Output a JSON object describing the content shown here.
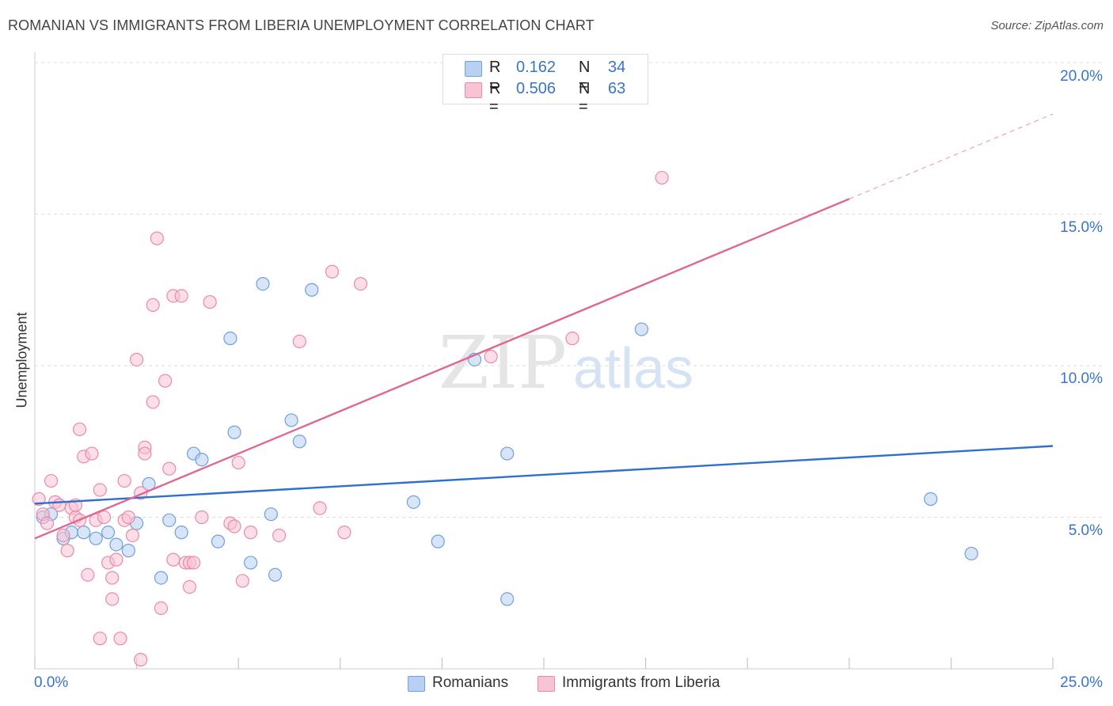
{
  "header": {
    "title": "ROMANIAN VS IMMIGRANTS FROM LIBERIA UNEMPLOYMENT CORRELATION CHART",
    "source": "Source: ZipAtlas.com"
  },
  "legend_box": {
    "rows": [
      {
        "r_label": "R =",
        "r_value": "0.162",
        "n_label": "N =",
        "n_value": "34"
      },
      {
        "r_label": "R =",
        "r_value": "0.506",
        "n_label": "N =",
        "n_value": "63"
      }
    ]
  },
  "bottom_legend": [
    "Romanians",
    "Immigrants from Liberia"
  ],
  "watermark": {
    "zip": "ZIP",
    "atlas": "atlas"
  },
  "colors": {
    "romanians_fill": "#b8d0f3",
    "romanians_stroke": "#6f9fe0",
    "romanians_line": "#2f6fd0",
    "liberia_fill": "#f8c3d2",
    "liberia_stroke": "#ea8aa8",
    "liberia_line": "#e06890",
    "tick_text": "#3a74c9",
    "grid": "#dddddd"
  },
  "chart_data": {
    "type": "scatter",
    "title": "ROMANIAN VS IMMIGRANTS FROM LIBERIA UNEMPLOYMENT CORRELATION CHART",
    "xlabel": "",
    "ylabel": "Unemployment",
    "xlim": [
      0,
      25
    ],
    "ylim": [
      0,
      20
    ],
    "x_tick_labels": [
      "0.0%",
      "25.0%"
    ],
    "y_ticks": [
      5,
      10,
      15,
      20
    ],
    "y_tick_labels": [
      "5.0%",
      "10.0%",
      "15.0%",
      "20.0%"
    ],
    "grid": "horizontal dashed",
    "legend": "top-center",
    "series": [
      {
        "name": "Romanians",
        "r": 0.162,
        "n": 34,
        "trend": {
          "x0": 0.0,
          "y0": 5.45,
          "x1": 25.0,
          "y1": 7.35,
          "solid_to": 25.0
        },
        "points": [
          [
            0.2,
            5.0
          ],
          [
            0.4,
            5.1
          ],
          [
            0.7,
            4.3
          ],
          [
            0.9,
            4.5
          ],
          [
            1.2,
            4.5
          ],
          [
            1.5,
            4.3
          ],
          [
            1.8,
            4.5
          ],
          [
            2.0,
            4.1
          ],
          [
            2.3,
            3.9
          ],
          [
            2.5,
            4.8
          ],
          [
            2.8,
            6.1
          ],
          [
            3.1,
            3.0
          ],
          [
            3.3,
            4.9
          ],
          [
            3.6,
            4.5
          ],
          [
            3.9,
            7.1
          ],
          [
            4.1,
            6.9
          ],
          [
            4.5,
            4.2
          ],
          [
            4.8,
            10.9
          ],
          [
            4.9,
            7.8
          ],
          [
            5.3,
            3.5
          ],
          [
            5.6,
            12.7
          ],
          [
            5.8,
            5.1
          ],
          [
            5.9,
            3.1
          ],
          [
            6.3,
            8.2
          ],
          [
            6.5,
            7.5
          ],
          [
            6.8,
            12.5
          ],
          [
            9.3,
            5.5
          ],
          [
            9.9,
            4.2
          ],
          [
            10.8,
            10.2
          ],
          [
            11.6,
            2.3
          ],
          [
            11.6,
            7.1
          ],
          [
            14.9,
            11.2
          ],
          [
            22.0,
            5.6
          ],
          [
            23.0,
            3.8
          ]
        ]
      },
      {
        "name": "Immigrants from Liberia",
        "r": 0.506,
        "n": 63,
        "trend": {
          "x0": 0.0,
          "y0": 4.3,
          "x1": 25.0,
          "y1": 18.3,
          "solid_to": 20.0
        },
        "points": [
          [
            0.1,
            5.6
          ],
          [
            0.2,
            5.1
          ],
          [
            0.3,
            4.8
          ],
          [
            0.4,
            6.2
          ],
          [
            0.5,
            5.5
          ],
          [
            0.6,
            5.4
          ],
          [
            0.7,
            4.4
          ],
          [
            0.8,
            3.9
          ],
          [
            0.9,
            5.3
          ],
          [
            1.0,
            5.0
          ],
          [
            1.0,
            5.4
          ],
          [
            1.1,
            4.9
          ],
          [
            1.1,
            7.9
          ],
          [
            1.2,
            7.0
          ],
          [
            1.3,
            3.1
          ],
          [
            1.4,
            7.1
          ],
          [
            1.5,
            4.9
          ],
          [
            1.6,
            5.9
          ],
          [
            1.6,
            1.0
          ],
          [
            1.7,
            5.0
          ],
          [
            1.8,
            3.5
          ],
          [
            1.9,
            3.0
          ],
          [
            1.9,
            2.3
          ],
          [
            2.0,
            3.6
          ],
          [
            2.1,
            1.0
          ],
          [
            2.2,
            4.9
          ],
          [
            2.2,
            6.2
          ],
          [
            2.3,
            5.0
          ],
          [
            2.4,
            4.4
          ],
          [
            2.5,
            10.2
          ],
          [
            2.6,
            0.3
          ],
          [
            2.6,
            5.8
          ],
          [
            2.7,
            7.3
          ],
          [
            2.7,
            7.1
          ],
          [
            2.9,
            8.8
          ],
          [
            2.9,
            12.0
          ],
          [
            3.0,
            14.2
          ],
          [
            3.1,
            2.0
          ],
          [
            3.2,
            9.5
          ],
          [
            3.3,
            6.6
          ],
          [
            3.4,
            3.6
          ],
          [
            3.4,
            12.3
          ],
          [
            3.6,
            12.3
          ],
          [
            3.7,
            3.5
          ],
          [
            3.8,
            3.5
          ],
          [
            3.8,
            2.7
          ],
          [
            3.9,
            3.5
          ],
          [
            4.1,
            5.0
          ],
          [
            4.3,
            12.1
          ],
          [
            4.8,
            4.8
          ],
          [
            4.9,
            4.7
          ],
          [
            5.0,
            6.8
          ],
          [
            5.1,
            2.9
          ],
          [
            5.3,
            4.5
          ],
          [
            6.0,
            4.4
          ],
          [
            6.5,
            10.8
          ],
          [
            7.0,
            5.3
          ],
          [
            7.3,
            13.1
          ],
          [
            7.6,
            4.5
          ],
          [
            8.0,
            12.7
          ],
          [
            11.2,
            10.3
          ],
          [
            13.2,
            10.9
          ],
          [
            15.4,
            16.2
          ]
        ]
      }
    ]
  }
}
